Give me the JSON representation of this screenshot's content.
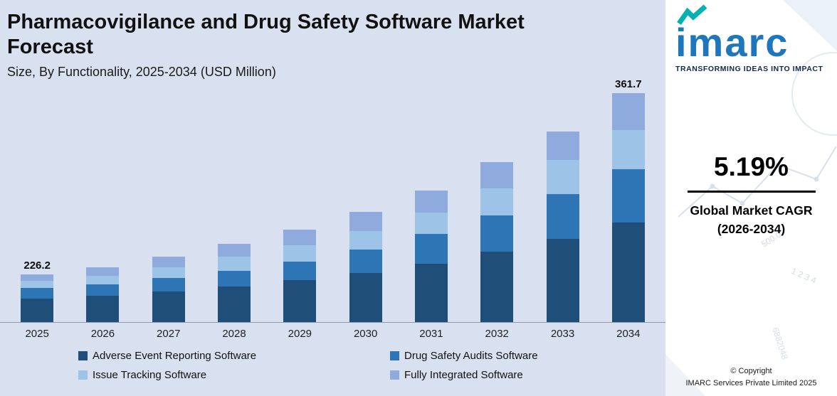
{
  "header": {
    "title": "Pharmacovigilance and Drug Safety Software Market Forecast",
    "subtitle": "Size, By Functionality, 2025-2034 (USD Million)"
  },
  "chart_data": {
    "type": "bar",
    "stacked": true,
    "title": "Pharmacovigilance and Drug Safety Software Market Forecast",
    "subtitle": "Size, By Functionality, 2025-2034 (USD Million)",
    "categories": [
      "2025",
      "2026",
      "2027",
      "2028",
      "2029",
      "2030",
      "2031",
      "2032",
      "2033",
      "2034"
    ],
    "series": [
      {
        "name": "Adverse Event Reporting Software",
        "color": "#1f4e79",
        "values": [
          33,
          37,
          43,
          50,
          59,
          69,
          82,
          99,
          117,
          140
        ]
      },
      {
        "name": "Drug Safety Audits Software",
        "color": "#2e75b6",
        "values": [
          15,
          16,
          19,
          22,
          26,
          33,
          42,
          51,
          63,
          75
        ]
      },
      {
        "name": "Issue Tracking Software",
        "color": "#9dc3e6",
        "values": [
          10,
          12,
          15,
          20,
          23,
          26,
          30,
          38,
          48,
          55
        ]
      },
      {
        "name": "Fully Integrated Software",
        "color": "#8faadc",
        "values": [
          9,
          12,
          15,
          18,
          22,
          27,
          31,
          37,
          40,
          52
        ]
      }
    ],
    "value_unit": "relative bar height; only endpoint totals labeled in USD Million",
    "data_labels": {
      "2025": "226.2",
      "2034": "361.7"
    },
    "labeled_totals_usd_million": {
      "2025": 226.2,
      "2034": 361.7
    },
    "legend_position": "bottom",
    "grid": false,
    "background": "#d9e1f1"
  },
  "side_panel": {
    "logo": {
      "text": "imarc",
      "tagline": "TRANSFORMING IDEAS INTO IMPACT"
    },
    "cagr": {
      "value": "5.19%",
      "label_line1": "Global Market CAGR",
      "label_line2": "(2026-2034)"
    },
    "copyright": {
      "line1": "© Copyright",
      "line2": "IMARC Services Private Limited 2025"
    },
    "decorative_numbers": [
      "500.0",
      "1 2 3 4",
      "6882048"
    ],
    "colors": {
      "logo_blue": "#1e76bc",
      "logo_teal": "#00b2b2",
      "divider": "#000000"
    }
  }
}
